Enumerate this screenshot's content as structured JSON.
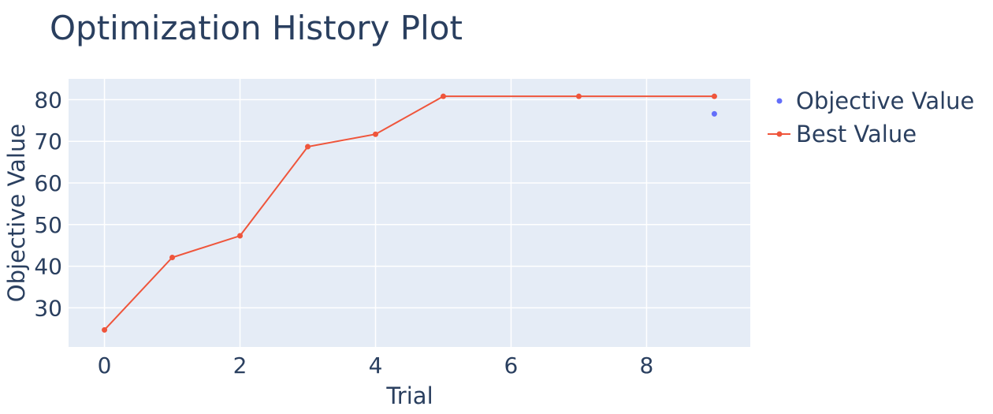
{
  "chart_data": {
    "type": "line",
    "title": "Optimization History Plot",
    "xlabel": "Trial",
    "ylabel": "Objective Value",
    "xlim": [
      -0.53,
      9.53
    ],
    "ylim": [
      20.6,
      85.0
    ],
    "xticks": [
      0,
      2,
      4,
      6,
      8
    ],
    "yticks": [
      30,
      40,
      50,
      60,
      70,
      80
    ],
    "grid": true,
    "legend_position": "right",
    "series": [
      {
        "name": "Objective Value",
        "mode": "markers",
        "color": "#636efa",
        "x": [
          9
        ],
        "y": [
          76.6
        ]
      },
      {
        "name": "Best Value",
        "mode": "lines+markers",
        "color": "#ef553b",
        "x": [
          0,
          1,
          2,
          3,
          4,
          5,
          7,
          9
        ],
        "y": [
          24.7,
          42.1,
          47.3,
          68.7,
          71.7,
          80.8,
          80.8,
          80.8
        ]
      }
    ]
  }
}
